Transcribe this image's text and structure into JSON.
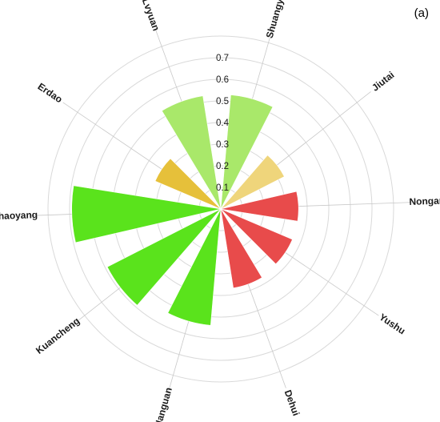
{
  "panel_label": "(a)",
  "chart_data": {
    "type": "polar-bar",
    "categories": [
      "Shuangyang",
      "Jiutai",
      "Nongan",
      "Yushu",
      "Dehui",
      "Nanguan",
      "Kuancheng",
      "Chaoyang",
      "Erdao",
      "Lvyuan"
    ],
    "values": [
      0.53,
      0.33,
      0.36,
      0.36,
      0.37,
      0.54,
      0.59,
      0.69,
      0.33,
      0.53
    ],
    "colors": [
      "#a9e86a",
      "#efd57b",
      "#e84b4b",
      "#e84b4b",
      "#e84b4b",
      "#5ae31c",
      "#5ae31c",
      "#5ae31c",
      "#e6c03a",
      "#a9e86a"
    ],
    "radial_ticks": [
      "0.1",
      "0.2",
      "0.3",
      "0.4",
      "0.5",
      "0.6",
      "0.7"
    ],
    "rlim": [
      0,
      0.8
    ],
    "grid": true
  }
}
